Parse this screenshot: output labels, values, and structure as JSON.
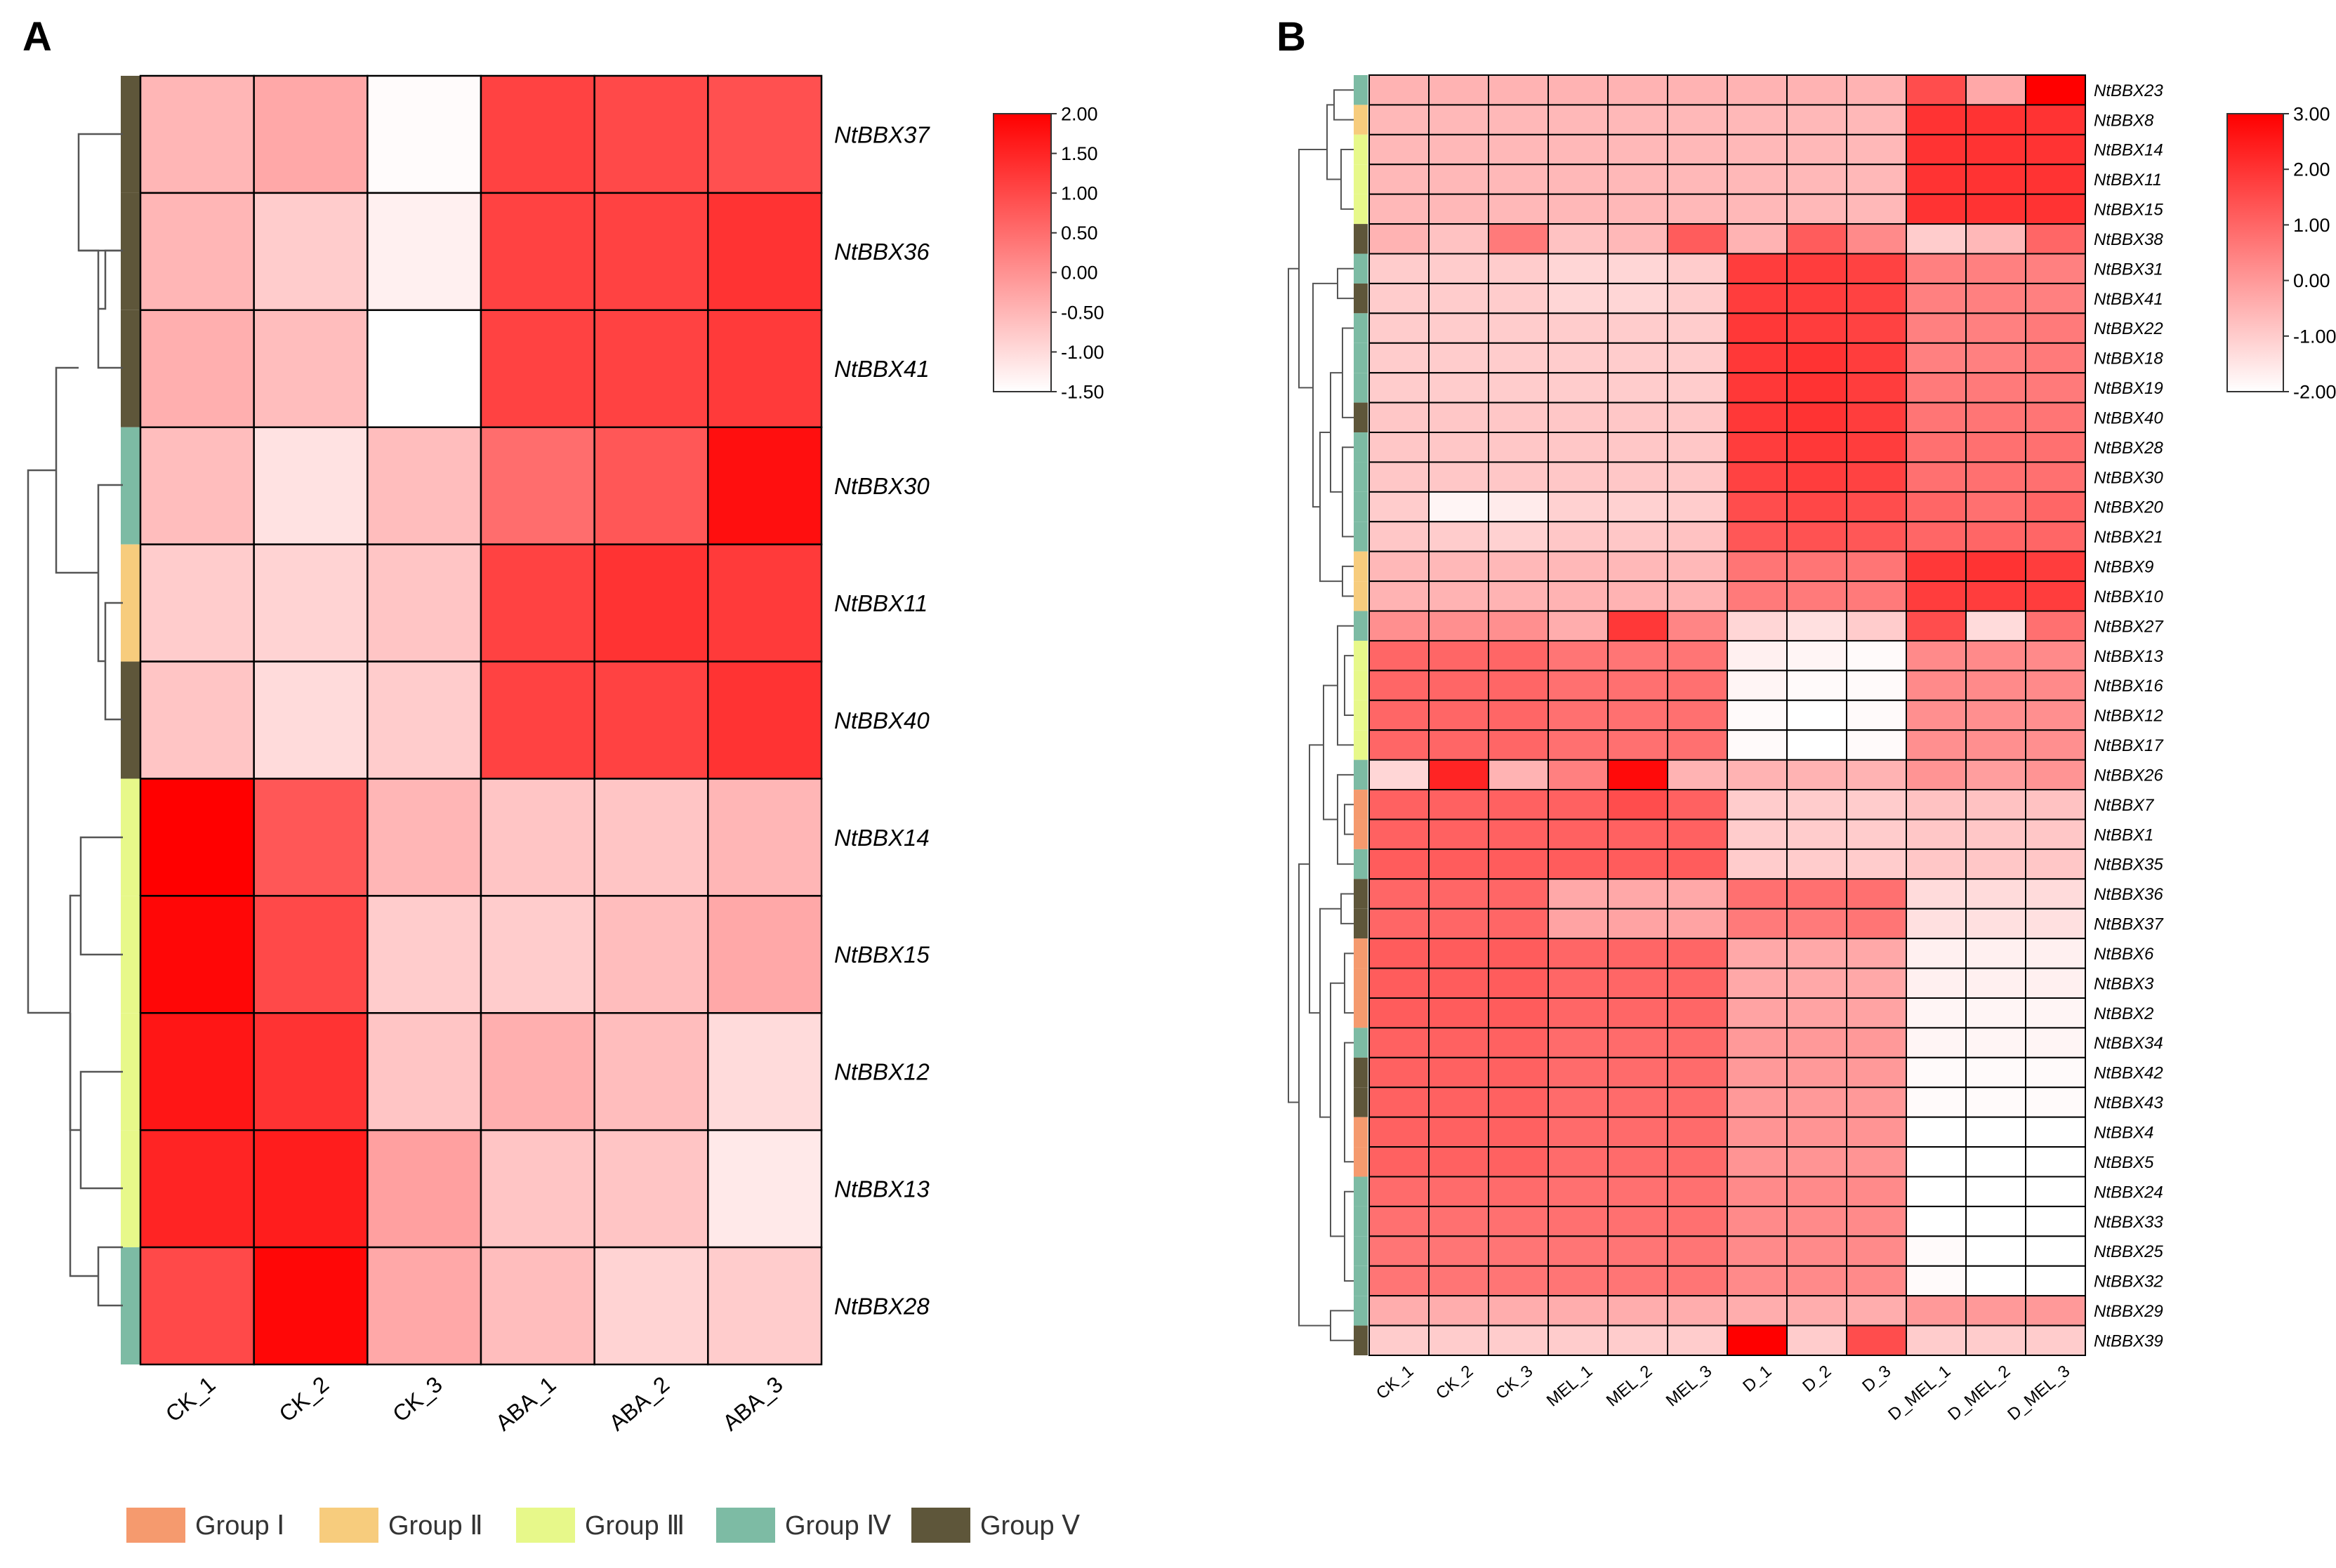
{
  "chart_data": [
    {
      "type": "heatmap",
      "panel_label": "A",
      "columns": [
        "CK_1",
        "CK_2",
        "CK_3",
        "ABA_1",
        "ABA_2",
        "ABA_3"
      ],
      "rows": [
        "NtBBX37",
        "NtBBX36",
        "NtBBX41",
        "NtBBX30",
        "NtBBX11",
        "NtBBX40",
        "NtBBX14",
        "NtBBX15",
        "NtBBX12",
        "NtBBX13",
        "NtBBX28"
      ],
      "row_groups": [
        "Group V",
        "Group V",
        "Group V",
        "Group IV",
        "Group II",
        "Group V",
        "Group III",
        "Group III",
        "Group III",
        "Group III",
        "Group IV"
      ],
      "values": [
        [
          -0.5,
          -0.3,
          -1.45,
          1.1,
          1.0,
          0.9
        ],
        [
          -0.5,
          -0.8,
          -1.3,
          1.1,
          1.1,
          1.3
        ],
        [
          -0.4,
          -0.6,
          -1.5,
          1.1,
          1.1,
          1.2
        ],
        [
          -0.6,
          -1.1,
          -0.6,
          0.5,
          0.8,
          1.8
        ],
        [
          -0.8,
          -0.9,
          -0.7,
          1.1,
          1.3,
          1.2
        ],
        [
          -0.7,
          -1.0,
          -0.8,
          1.1,
          1.1,
          1.3
        ],
        [
          2.0,
          0.8,
          -0.5,
          -0.7,
          -0.7,
          -0.5
        ],
        [
          1.9,
          1.0,
          -0.8,
          -0.8,
          -0.6,
          -0.3
        ],
        [
          1.7,
          1.3,
          -0.7,
          -0.4,
          -0.6,
          -1.0
        ],
        [
          1.5,
          1.6,
          -0.2,
          -0.7,
          -0.7,
          -1.2
        ],
        [
          1.0,
          1.9,
          -0.3,
          -0.6,
          -0.9,
          -0.8
        ]
      ],
      "colorbar": {
        "min": -1.5,
        "max": 2.0,
        "ticks": [
          "2.00",
          "1.50",
          "1.00",
          "0.50",
          "0.00",
          "-0.50",
          "-1.00",
          "-1.50"
        ]
      }
    },
    {
      "type": "heatmap",
      "panel_label": "B",
      "columns": [
        "CK_1",
        "CK_2",
        "CK_3",
        "MEL_1",
        "MEL_2",
        "MEL_3",
        "D_1",
        "D_2",
        "D_3",
        "D_MEL_1",
        "D_MEL_2",
        "D_MEL_3"
      ],
      "rows": [
        "NtBBX23",
        "NtBBX8",
        "NtBBX14",
        "NtBBX11",
        "NtBBX15",
        "NtBBX38",
        "NtBBX31",
        "NtBBX41",
        "NtBBX22",
        "NtBBX18",
        "NtBBX19",
        "NtBBX40",
        "NtBBX28",
        "NtBBX30",
        "NtBBX20",
        "NtBBX21",
        "NtBBX9",
        "NtBBX10",
        "NtBBX27",
        "NtBBX13",
        "NtBBX16",
        "NtBBX12",
        "NtBBX17",
        "NtBBX26",
        "NtBBX7",
        "NtBBX1",
        "NtBBX35",
        "NtBBX36",
        "NtBBX37",
        "NtBBX6",
        "NtBBX3",
        "NtBBX2",
        "NtBBX34",
        "NtBBX42",
        "NtBBX43",
        "NtBBX4",
        "NtBBX5",
        "NtBBX24",
        "NtBBX33",
        "NtBBX25",
        "NtBBX32",
        "NtBBX29",
        "NtBBX39"
      ],
      "row_groups": [
        "Group IV",
        "Group II",
        "Group III",
        "Group III",
        "Group III",
        "Group V",
        "Group IV",
        "Group V",
        "Group IV",
        "Group IV",
        "Group IV",
        "Group V",
        "Group IV",
        "Group IV",
        "Group IV",
        "Group IV",
        "Group II",
        "Group II",
        "Group IV",
        "Group III",
        "Group III",
        "Group III",
        "Group III",
        "Group IV",
        "Group I",
        "Group I",
        "Group IV",
        "Group V",
        "Group V",
        "Group I",
        "Group I",
        "Group I",
        "Group IV",
        "Group V",
        "Group V",
        "Group I",
        "Group I",
        "Group IV",
        "Group IV",
        "Group IV",
        "Group IV",
        "Group IV",
        "Group V"
      ],
      "values": [
        [
          -0.5,
          -0.5,
          -0.5,
          -0.5,
          -0.5,
          -0.5,
          -0.5,
          -0.5,
          -0.5,
          1.5,
          -0.3,
          3.0
        ],
        [
          -0.6,
          -0.6,
          -0.6,
          -0.6,
          -0.6,
          -0.6,
          -0.6,
          -0.6,
          -0.6,
          2.0,
          2.0,
          2.0
        ],
        [
          -0.6,
          -0.6,
          -0.6,
          -0.6,
          -0.6,
          -0.6,
          -0.6,
          -0.6,
          -0.6,
          2.0,
          2.0,
          2.0
        ],
        [
          -0.6,
          -0.6,
          -0.6,
          -0.6,
          -0.6,
          -0.6,
          -0.6,
          -0.6,
          -0.6,
          2.0,
          2.0,
          2.0
        ],
        [
          -0.6,
          -0.6,
          -0.6,
          -0.6,
          -0.6,
          -0.6,
          -0.6,
          -0.6,
          -0.6,
          2.0,
          2.0,
          2.0
        ],
        [
          -0.5,
          -0.8,
          0.6,
          -0.8,
          -0.6,
          1.2,
          -0.5,
          1.2,
          0.3,
          -1.0,
          -0.6,
          1.0
        ],
        [
          -1.0,
          -1.0,
          -1.0,
          -1.2,
          -1.2,
          -1.0,
          1.8,
          1.8,
          1.7,
          0.5,
          0.5,
          0.5
        ],
        [
          -1.0,
          -1.0,
          -1.0,
          -1.2,
          -1.2,
          -1.0,
          1.8,
          1.8,
          1.7,
          0.5,
          0.5,
          0.5
        ],
        [
          -1.0,
          -1.0,
          -1.0,
          -1.0,
          -1.0,
          -1.0,
          1.9,
          1.8,
          1.7,
          0.5,
          0.5,
          0.6
        ],
        [
          -1.0,
          -1.0,
          -1.0,
          -1.0,
          -1.0,
          -1.0,
          1.9,
          2.0,
          1.8,
          0.5,
          0.5,
          0.6
        ],
        [
          -1.0,
          -1.0,
          -1.0,
          -1.0,
          -1.0,
          -1.0,
          1.9,
          2.0,
          1.8,
          0.6,
          0.6,
          0.6
        ],
        [
          -0.9,
          -0.9,
          -0.9,
          -0.9,
          -0.9,
          -0.9,
          1.9,
          2.0,
          1.8,
          0.7,
          0.7,
          0.7
        ],
        [
          -0.9,
          -0.9,
          -0.9,
          -0.9,
          -0.9,
          -0.9,
          1.8,
          1.9,
          1.8,
          0.8,
          0.8,
          0.8
        ],
        [
          -0.9,
          -0.9,
          -0.9,
          -0.9,
          -0.9,
          -0.9,
          1.7,
          1.8,
          1.7,
          0.8,
          0.8,
          0.8
        ],
        [
          -1.0,
          -1.8,
          -1.6,
          -1.1,
          -1.1,
          -1.0,
          1.5,
          1.6,
          1.5,
          1.0,
          0.8,
          1.0
        ],
        [
          -0.9,
          -1.0,
          -1.1,
          -0.9,
          -0.9,
          -0.8,
          1.3,
          1.4,
          1.3,
          1.0,
          1.0,
          1.0
        ],
        [
          -0.6,
          -0.6,
          -0.6,
          -0.6,
          -0.6,
          -0.6,
          0.7,
          0.7,
          0.7,
          1.9,
          2.0,
          1.8
        ],
        [
          -0.5,
          -0.5,
          -0.5,
          -0.5,
          -0.5,
          -0.5,
          0.6,
          0.6,
          0.6,
          1.8,
          1.8,
          1.8
        ],
        [
          0.2,
          0.2,
          0.2,
          -0.4,
          1.9,
          0.4,
          -1.2,
          -1.4,
          -1.0,
          1.5,
          -1.3,
          0.8
        ],
        [
          1.0,
          1.0,
          1.0,
          0.7,
          0.7,
          0.7,
          -1.7,
          -1.8,
          -1.9,
          0.3,
          0.3,
          0.3
        ],
        [
          1.0,
          1.0,
          1.0,
          0.8,
          0.8,
          0.8,
          -1.8,
          -1.9,
          -1.9,
          0.3,
          0.3,
          0.3
        ],
        [
          1.0,
          1.0,
          1.0,
          0.8,
          0.8,
          0.8,
          -1.9,
          -2.0,
          -1.9,
          0.2,
          0.2,
          0.2
        ],
        [
          1.0,
          1.0,
          1.0,
          0.8,
          0.8,
          0.8,
          -1.9,
          -2.0,
          -1.9,
          0.2,
          0.2,
          0.2
        ],
        [
          -1.2,
          2.3,
          -0.5,
          0.5,
          2.8,
          -0.5,
          -0.5,
          -0.5,
          -0.5,
          0.1,
          -0.1,
          0.1
        ],
        [
          1.1,
          1.1,
          1.1,
          1.1,
          1.5,
          1.1,
          -1.0,
          -1.0,
          -1.0,
          -0.8,
          -0.8,
          -0.8
        ],
        [
          1.1,
          1.1,
          1.1,
          1.1,
          1.1,
          1.1,
          -1.0,
          -1.0,
          -1.0,
          -0.9,
          -0.9,
          -0.9
        ],
        [
          1.2,
          1.2,
          1.2,
          1.2,
          1.2,
          1.2,
          -1.0,
          -1.0,
          -1.0,
          -0.9,
          -0.9,
          -0.9
        ],
        [
          1.0,
          1.0,
          1.0,
          -0.3,
          -0.3,
          -0.3,
          0.8,
          0.8,
          0.8,
          -1.3,
          -1.3,
          -1.3
        ],
        [
          1.0,
          1.0,
          1.0,
          -0.2,
          -0.2,
          -0.2,
          0.6,
          0.6,
          0.7,
          -1.4,
          -1.4,
          -1.4
        ],
        [
          1.2,
          1.2,
          1.2,
          1.0,
          1.0,
          1.0,
          -0.3,
          -0.3,
          -0.3,
          -1.7,
          -1.7,
          -1.7
        ],
        [
          1.2,
          1.2,
          1.2,
          1.0,
          1.0,
          1.0,
          -0.3,
          -0.3,
          -0.3,
          -1.7,
          -1.7,
          -1.7
        ],
        [
          1.2,
          1.2,
          1.2,
          1.0,
          1.0,
          1.0,
          -0.2,
          -0.2,
          -0.2,
          -1.8,
          -1.8,
          -1.8
        ],
        [
          1.1,
          1.1,
          1.1,
          0.9,
          0.9,
          0.9,
          0.0,
          0.0,
          0.0,
          -1.8,
          -1.8,
          -1.8
        ],
        [
          1.1,
          1.1,
          1.1,
          0.9,
          0.9,
          0.9,
          0.0,
          0.0,
          0.0,
          -1.9,
          -1.9,
          -1.9
        ],
        [
          1.1,
          1.1,
          1.1,
          0.9,
          0.9,
          0.9,
          0.0,
          0.0,
          0.0,
          -1.9,
          -1.9,
          -1.9
        ],
        [
          1.1,
          1.1,
          1.1,
          0.9,
          0.9,
          0.9,
          0.1,
          0.1,
          0.1,
          -2.0,
          -2.0,
          -2.0
        ],
        [
          1.1,
          1.1,
          1.1,
          0.9,
          0.9,
          0.9,
          0.1,
          0.1,
          0.1,
          -2.0,
          -2.0,
          -2.0
        ],
        [
          0.9,
          0.9,
          0.9,
          0.8,
          0.8,
          0.8,
          0.3,
          0.3,
          0.3,
          -2.0,
          -2.0,
          -2.0
        ],
        [
          0.8,
          0.8,
          0.8,
          0.8,
          0.8,
          0.8,
          0.3,
          0.3,
          0.3,
          -2.0,
          -2.0,
          -2.0
        ],
        [
          0.7,
          0.7,
          0.7,
          0.7,
          0.7,
          0.7,
          0.3,
          0.3,
          0.3,
          -1.9,
          -2.0,
          -2.0
        ],
        [
          0.7,
          0.7,
          0.7,
          0.7,
          0.7,
          0.7,
          0.3,
          0.3,
          0.3,
          -1.9,
          -2.0,
          -2.0
        ],
        [
          -0.4,
          -0.4,
          -0.4,
          -0.4,
          -0.4,
          -0.4,
          -0.4,
          -0.4,
          -0.4,
          0.0,
          0.0,
          0.0
        ],
        [
          -1.0,
          -1.0,
          -1.0,
          -1.0,
          -1.0,
          -1.0,
          3.0,
          -1.0,
          1.5,
          -1.0,
          -1.0,
          -1.0
        ]
      ],
      "colorbar": {
        "min": -2.0,
        "max": 3.0,
        "ticks": [
          "3.00",
          "2.00",
          "1.00",
          "0.00",
          "-1.00",
          "-2.00"
        ]
      }
    }
  ],
  "legend": [
    {
      "label": "Group Ⅰ",
      "color": "#F59A6E"
    },
    {
      "label": "Group Ⅱ",
      "color": "#F7CC7D"
    },
    {
      "label": "Group Ⅲ",
      "color": "#E7F88A"
    },
    {
      "label": "Group Ⅳ",
      "color": "#7DBBA4"
    },
    {
      "label": "Group Ⅴ",
      "color": "#5E563A"
    }
  ],
  "group_colors": {
    "Group I": "#F59A6E",
    "Group II": "#F7CC7D",
    "Group III": "#E7F88A",
    "Group IV": "#7DBBA4",
    "Group V": "#5E563A"
  }
}
